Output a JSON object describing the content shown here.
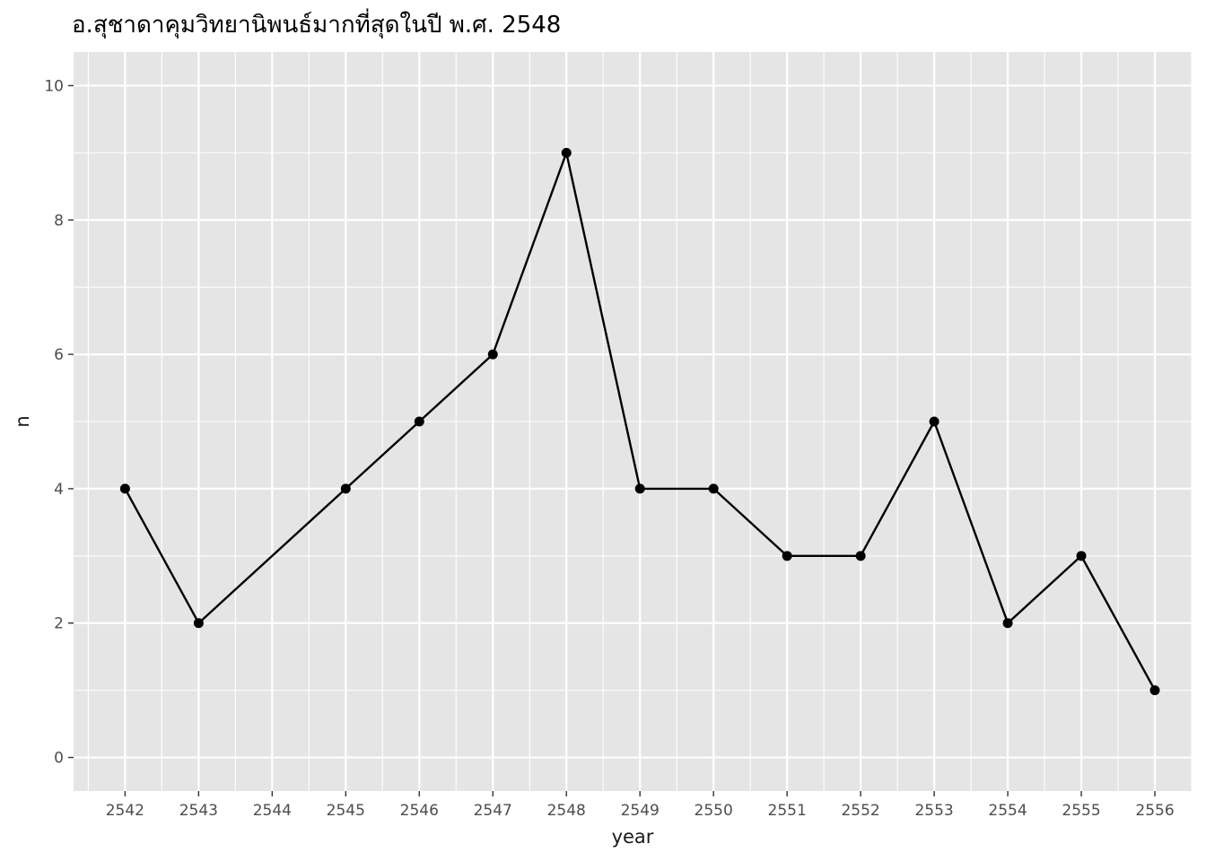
{
  "chart_data": {
    "type": "line",
    "title": "อ.สุชาดาคุมวิทยานิพนธ์มากที่สุดในปี พ.ศ. 2548",
    "xlabel": "year",
    "ylabel": "n",
    "x": [
      2542,
      2543,
      2545,
      2546,
      2547,
      2548,
      2549,
      2550,
      2551,
      2552,
      2553,
      2554,
      2555,
      2556
    ],
    "y": [
      4,
      2,
      4,
      5,
      6,
      9,
      4,
      4,
      3,
      3,
      5,
      2,
      3,
      1
    ],
    "x_ticks": [
      2542,
      2543,
      2544,
      2545,
      2546,
      2547,
      2548,
      2549,
      2550,
      2551,
      2552,
      2553,
      2554,
      2555,
      2556
    ],
    "y_ticks": [
      0,
      2,
      4,
      6,
      8,
      10
    ],
    "xlim": [
      2541.3,
      2556.5
    ],
    "ylim": [
      -0.5,
      10.5
    ],
    "grid": true,
    "markers": true,
    "colors": {
      "panel": "#e5e5e5",
      "grid": "#ffffff",
      "line": "#000000",
      "tick": "#333333"
    }
  }
}
